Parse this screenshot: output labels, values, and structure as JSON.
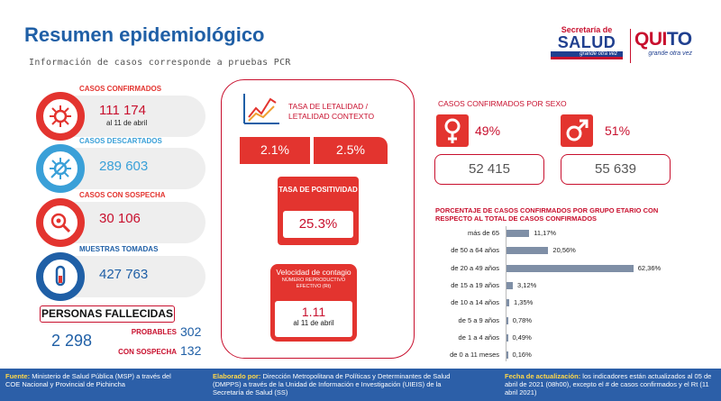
{
  "header": {
    "title": "Resumen epidemiológico",
    "subtitle": "Información de casos corresponde a pruebas PCR"
  },
  "logos": {
    "salud_top": "Secretaría de",
    "salud_main": "SALUD",
    "salud_tag": "grande otra vez",
    "quito_a": "QUI",
    "quito_b": "TO",
    "quito_tag": "grande otra vez"
  },
  "stats": {
    "confirmados": {
      "label": "CASOS CONFIRMADOS",
      "value": "111 174",
      "sub": "al 11 de abril",
      "color": "#e3342f"
    },
    "descartados": {
      "label": "CASOS DESCARTADOS",
      "value": "289 603",
      "color": "#3aa0d8"
    },
    "sospecha": {
      "label": "CASOS CON SOSPECHA",
      "value": "30 106",
      "color": "#e3342f"
    },
    "muestras": {
      "label": "MUESTRAS TOMADAS",
      "value": "427 763",
      "color": "#1f5fa6"
    }
  },
  "fallecidos": {
    "title": "PERSONAS FALLECIDAS",
    "total": "2 298",
    "probables_label": "PROBABLES",
    "probables_value": "302",
    "sospecha_label": "CON SOSPECHA",
    "sospecha_value": "132"
  },
  "letalidad": {
    "title": "TASA DE LETALIDAD / LETALIDAD CONTEXTO",
    "tasa": "2.1%",
    "contexto": "2.5%"
  },
  "positividad": {
    "title": "TASA DE POSITIVIDAD",
    "value": "25.3%"
  },
  "contagio": {
    "title": "Velocidad de contagio",
    "subtitle": "NÚMERO REPRODUCTIVO EFECTIVO (Rt)",
    "value": "1.11",
    "date": "al 11 de abril"
  },
  "sexo": {
    "title": "CASOS CONFIRMADOS POR SEXO",
    "female_pct": "49%",
    "female_value": "52 415",
    "male_pct": "51%",
    "male_value": "55 639"
  },
  "edad": {
    "title": "PORCENTAJE DE CASOS CONFIRMADOS POR GRUPO ETARIO CON RESPECTO AL TOTAL DE CASOS CONFIRMADOS",
    "bar_color": "#7f8fa6"
  },
  "chart_data": {
    "type": "bar",
    "orientation": "horizontal",
    "title": "PORCENTAJE DE CASOS CONFIRMADOS POR GRUPO ETARIO CON RESPECTO AL TOTAL DE CASOS CONFIRMADOS",
    "categories": [
      "más de 65",
      "de 50 a 64 años",
      "de 20 a 49 años",
      "de 15 a 19 años",
      "de 10 a 14 años",
      "de 5 a 9 años",
      "de 1 a 4 años",
      "de 0 a 11 meses"
    ],
    "values": [
      11.17,
      20.56,
      62.36,
      3.12,
      1.35,
      0.78,
      0.49,
      0.16
    ],
    "labels": [
      "11,17%",
      "20,56%",
      "62,36%",
      "3,12%",
      "1,35%",
      "0,78%",
      "0,49%",
      "0,16%"
    ],
    "xlim": [
      0,
      70
    ],
    "grid": false
  },
  "footer": {
    "fuente_label": "Fuente:",
    "fuente_text": "Ministerio de Salud Pública (MSP) a través del COE Nacional y Provincial de Pichincha",
    "elab_label": "Elaborado por:",
    "elab_text": "Dirección Metropolitana de Políticas y Determinantes de Salud (DMPPS) a través de la Unidad de Información e Investigación (UIEIS) de la Secretaría de Salud (SS)",
    "fecha_label": "Fecha de actualización:",
    "fecha_text": "los indicadores están actualizados al 05 de abril de 2021 (08h00), excepto el # de casos confirmados y el Rt (11 abril 2021)"
  }
}
